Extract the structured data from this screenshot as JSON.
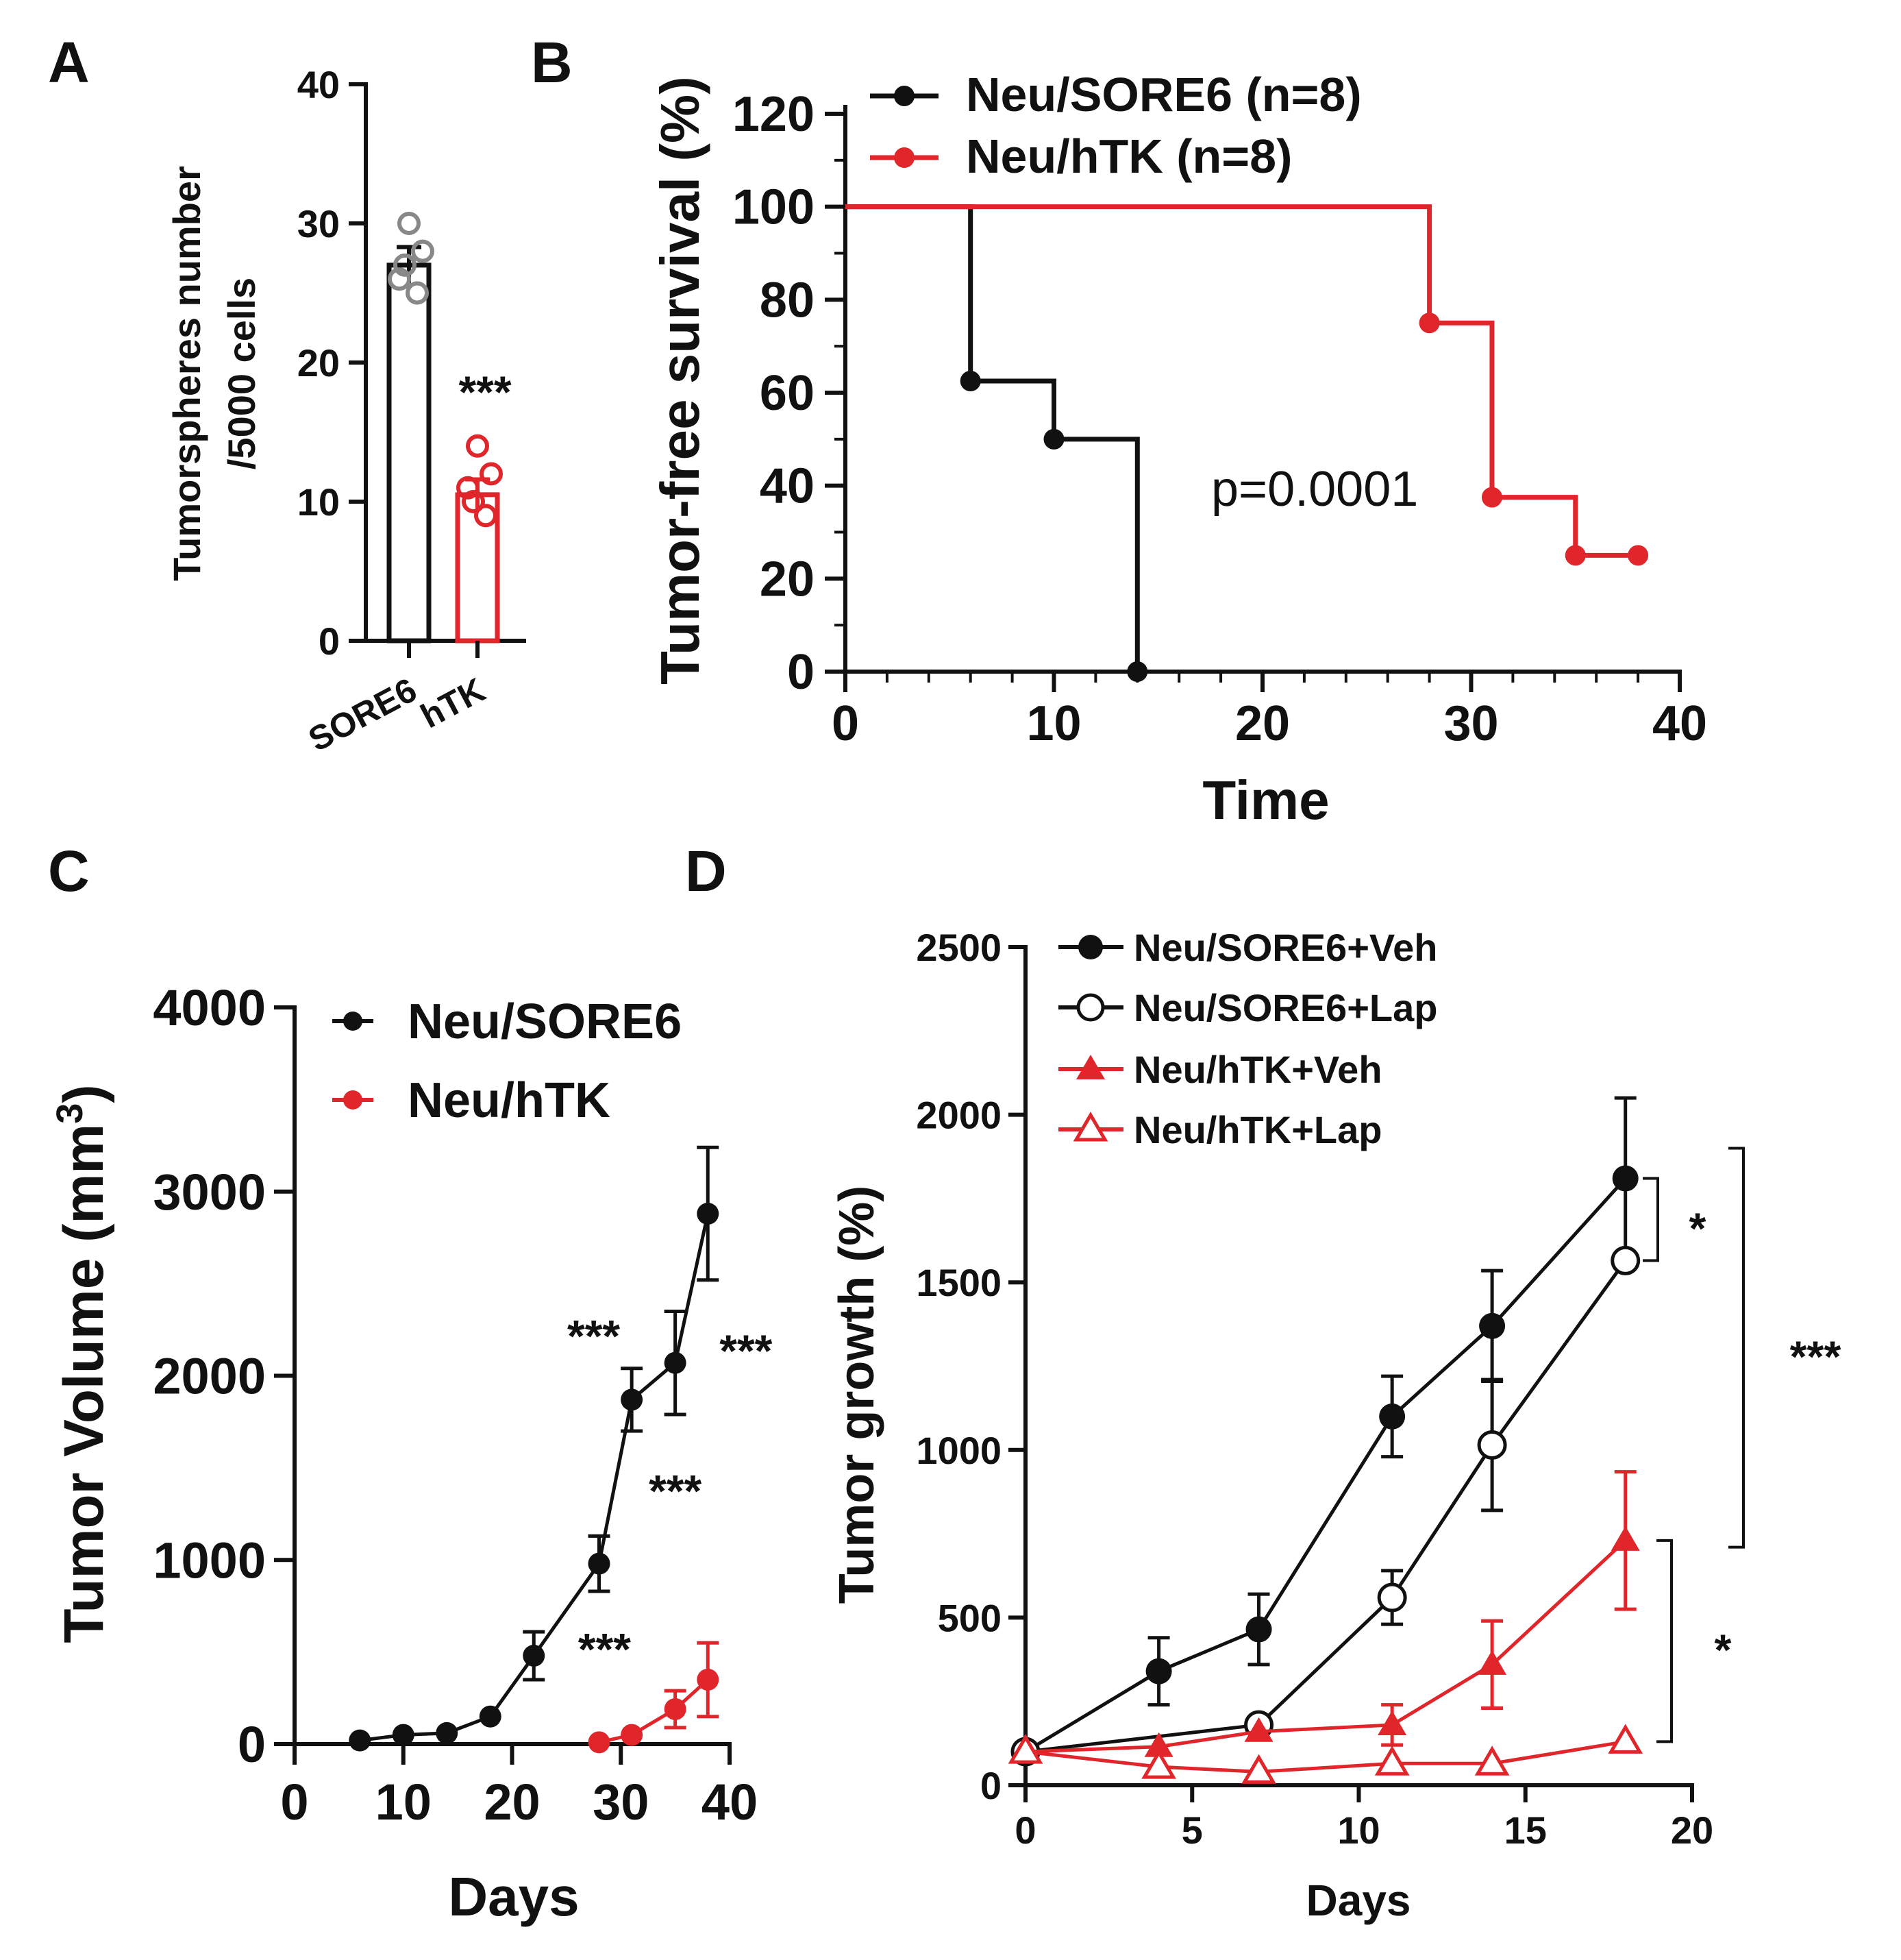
{
  "colors": {
    "black": "#111111",
    "red": "#e0262b",
    "gray": "#888888"
  },
  "chart_data": [
    {
      "panel": "A",
      "type": "bar",
      "categories": [
        "SORE6",
        "hTK"
      ],
      "values": [
        27,
        10.5
      ],
      "errors": [
        1.3,
        1.1
      ],
      "points": [
        [
          30,
          28,
          26,
          25,
          27
        ],
        [
          14,
          12,
          11,
          9,
          10
        ]
      ],
      "colors": [
        "#111111",
        "#e0262b"
      ],
      "point_colors": [
        "#888888",
        "#e0262b"
      ],
      "ylabel_lines": [
        "Tumorspheres number",
        "/5000 cells"
      ],
      "ylim": [
        0,
        40
      ],
      "yticks": [
        "0",
        "10",
        "20",
        "30",
        "40"
      ],
      "annotation": "***"
    },
    {
      "panel": "B",
      "type": "line",
      "subtype": "kaplan-meier",
      "xlabel": "Time",
      "ylabel": "Tumor-free survival (%)",
      "xlim": [
        0,
        40
      ],
      "ylim": [
        0,
        120
      ],
      "xticks": [
        "0",
        "10",
        "20",
        "30",
        "40"
      ],
      "yticks": [
        "0",
        "20",
        "40",
        "60",
        "80",
        "100",
        "120"
      ],
      "annotation": "p=0.0001",
      "series": [
        {
          "name": "Neu/SORE6 (n=8)",
          "color": "#111111",
          "steps": [
            [
              0,
              100
            ],
            [
              6,
              62.5
            ],
            [
              10,
              50
            ],
            [
              14,
              0
            ]
          ],
          "end_x": 14,
          "markers": [
            [
              6,
              62.5
            ],
            [
              10,
              50
            ],
            [
              14,
              0
            ]
          ]
        },
        {
          "name": "Neu/hTK (n=8)",
          "color": "#e0262b",
          "steps": [
            [
              0,
              100
            ],
            [
              28,
              75
            ],
            [
              31,
              37.5
            ],
            [
              35,
              25
            ]
          ],
          "end_x": 38,
          "markers": [
            [
              28,
              75
            ],
            [
              31,
              37.5
            ],
            [
              35,
              25
            ],
            [
              38,
              25
            ]
          ]
        }
      ]
    },
    {
      "panel": "C",
      "type": "line",
      "xlabel": "Days",
      "ylabel": "Tumor Volume (mm",
      "ylabel_sup": "3",
      "ylabel_close": ")",
      "xlim": [
        0,
        40
      ],
      "ylim": [
        0,
        4000
      ],
      "xticks": [
        "0",
        "10",
        "20",
        "30",
        "40"
      ],
      "yticks": [
        "0",
        "1000",
        "2000",
        "3000",
        "4000"
      ],
      "series": [
        {
          "name": "Neu/SORE6",
          "color": "#111111",
          "x": [
            6,
            10,
            14,
            18,
            22,
            28,
            31,
            35,
            38
          ],
          "y": [
            20,
            50,
            60,
            150,
            480,
            980,
            1870,
            2070,
            2880
          ],
          "err": [
            0,
            0,
            0,
            0,
            130,
            150,
            170,
            280,
            360
          ]
        },
        {
          "name": "Neu/hTK",
          "color": "#e0262b",
          "x": [
            28,
            31,
            35,
            38
          ],
          "y": [
            10,
            50,
            190,
            350
          ],
          "err": [
            0,
            0,
            100,
            200
          ]
        }
      ],
      "annotations": [
        {
          "text": "***",
          "x": 27.5,
          "y": 2130
        },
        {
          "text": "***",
          "x": 41.5,
          "y": 2050
        },
        {
          "text": "***",
          "x": 35,
          "y": 1290
        },
        {
          "text": "***",
          "x": 28.5,
          "y": 430
        }
      ]
    },
    {
      "panel": "D",
      "type": "line",
      "xlabel": "Days",
      "ylabel": "Tumor growth (%)",
      "xlim": [
        0,
        20
      ],
      "ylim": [
        0,
        2500
      ],
      "xticks": [
        "0",
        "5",
        "10",
        "15",
        "20"
      ],
      "yticks": [
        "0",
        "500",
        "1000",
        "1500",
        "2000",
        "2500"
      ],
      "series": [
        {
          "name": "Neu/SORE6+Veh",
          "color": "#111111",
          "marker": "circle-filled",
          "x": [
            0,
            4,
            7,
            11,
            14,
            18
          ],
          "y": [
            100,
            340,
            465,
            1100,
            1370,
            1810
          ],
          "err": [
            0,
            100,
            105,
            120,
            165,
            240
          ]
        },
        {
          "name": "Neu/SORE6+Lap",
          "color": "#111111",
          "marker": "circle-open",
          "x": [
            0,
            7,
            11,
            14,
            18
          ],
          "y": [
            100,
            180,
            560,
            1015,
            1565
          ],
          "err": [
            0,
            0,
            80,
            195,
            0
          ]
        },
        {
          "name": "Neu/hTK+Veh",
          "color": "#e0262b",
          "marker": "triangle-filled",
          "x": [
            0,
            4,
            7,
            11,
            18,
            14
          ],
          "y": [
            100,
            115,
            160,
            180,
            730,
            360
          ],
          "err": [
            0,
            0,
            0,
            60,
            205,
            130
          ]
        },
        {
          "name": "Neu/hTK+Lap",
          "color": "#e0262b",
          "marker": "triangle-open",
          "x": [
            0,
            4,
            7,
            11,
            14,
            18
          ],
          "y": [
            100,
            55,
            40,
            65,
            65,
            130
          ],
          "err": [
            0,
            0,
            0,
            0,
            0,
            0
          ]
        }
      ],
      "brackets": [
        {
          "label": "*",
          "from": 1810,
          "to": 1565
        },
        {
          "label": "***",
          "from": 1900,
          "to": 710
        },
        {
          "label": "*",
          "from": 730,
          "to": 130
        }
      ]
    }
  ],
  "panel_labels": [
    "A",
    "B",
    "C",
    "D"
  ]
}
